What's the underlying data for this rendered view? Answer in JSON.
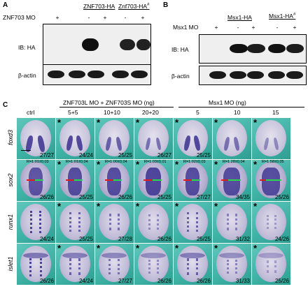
{
  "panelA": {
    "letter": "A",
    "header_znf": "ZNF703-HA",
    "header_znf_mut": "Znf703-HA",
    "header_mut_sup": "#",
    "row_label": "ZNF703 MO",
    "signs": [
      "+",
      "-",
      "+",
      "-",
      "+"
    ],
    "ib_label": "IB: HA",
    "actin_label": "β-actin"
  },
  "panelB": {
    "letter": "B",
    "header_msx": "Msx1-HA",
    "header_msx_mut": "Msx1-HA",
    "header_mut_sup": "#",
    "row_label": "Msx1 MO",
    "signs": [
      "+",
      "-",
      "+",
      "-",
      "+"
    ],
    "ib_label": "IB: HA",
    "actin_label": "β-actin"
  },
  "panelC": {
    "letter": "C",
    "group1_title": "ZNF703L MO + ZNF703S MO (ng)",
    "group2_title": "Msx1 MO (ng)",
    "columns": [
      "ctrl",
      "5+5",
      "10+10",
      "20+20",
      "5",
      "10",
      "15"
    ],
    "row_labels": [
      "foxd3",
      "sox2",
      "runx1",
      "islet1"
    ],
    "star": "*",
    "counts": [
      [
        "27/27",
        "24/24",
        "25/25",
        "26/27",
        "25/25",
        "",
        ""
      ],
      [
        "26/26",
        "25/25",
        "26/26",
        "25/25",
        "27/27",
        "34/35",
        "25/26"
      ],
      [
        "24/24",
        "25/25",
        "27/28",
        "26/26",
        "25/25",
        "31/32",
        "24/26"
      ],
      [
        "26/26",
        "24/24",
        "27/27",
        "26/26",
        "26/26",
        "31/33",
        "25/26"
      ]
    ],
    "ratios": [
      "R=1.01±0.03",
      "R=1.01±0.04",
      "R=1.00±0.04",
      "R=1.03±0.01",
      "R=1.02±0.03",
      "R=1.28±0.04",
      "R=1.58±0.05"
    ]
  }
}
